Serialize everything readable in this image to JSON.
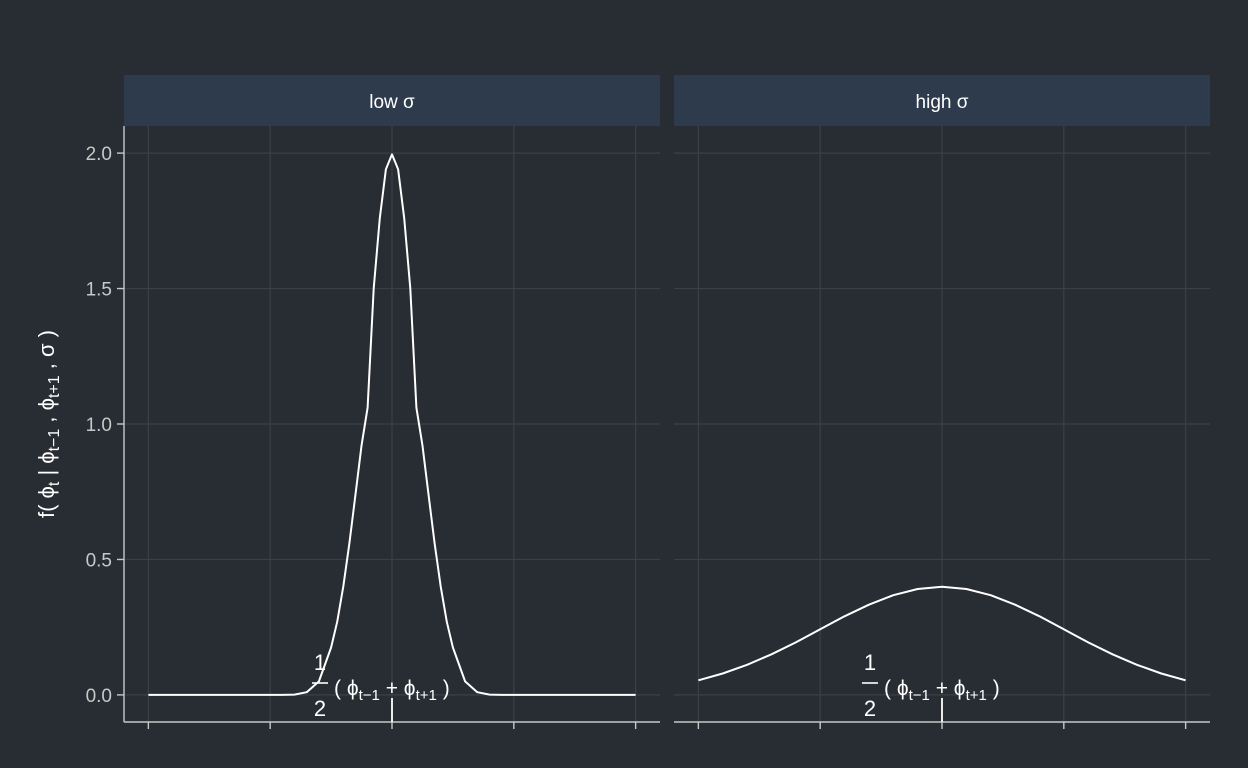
{
  "colors": {
    "background": "#282c33",
    "panel": "#282c33",
    "strip": "#2e3b4d",
    "grid": "#3b4048",
    "axis": "#c8c8c8",
    "curve": "#ffffff"
  },
  "chart_data": {
    "type": "line",
    "ylabel": "f( ϕt | ϕt−1 , ϕt+1 , σ )",
    "ylabel_parts": {
      "prefix": "f( ϕ",
      "s1": "t",
      "mid1": " | ϕ",
      "s2": "t−1",
      "mid2": " , ϕ",
      "s3": "t+1",
      "suffix": " , σ )"
    },
    "ylim": [
      -0.1,
      2.1
    ],
    "y_ticks": [
      0.0,
      0.5,
      1.0,
      1.5,
      2.0
    ],
    "y_tick_labels": [
      "0.0",
      "0.5",
      "1.0",
      "1.5",
      "2.0"
    ],
    "xlim": [
      -2.2,
      2.2
    ],
    "x_ticks": [
      -2,
      -1,
      0,
      1,
      2
    ],
    "x_tick_labels": [],
    "grid": true,
    "x_annotation": {
      "numerator": "1",
      "denominator": "2",
      "open": "( ϕ",
      "s1": "t−1",
      "plus": " + ϕ",
      "s2": "t+1",
      "close": " )",
      "x": 0
    },
    "panels": [
      {
        "strip": "low σ",
        "x_range": [
          -2,
          2
        ],
        "series": [
          {
            "x": [
              -2.0,
              -1.8,
              -1.6,
              -1.4,
              -1.2,
              -1.0,
              -0.9,
              -0.8,
              -0.7,
              -0.6,
              -0.5,
              -0.45,
              -0.4,
              -0.35,
              -0.3,
              -0.25,
              -0.2,
              -0.15,
              -0.1,
              -0.05,
              0.0,
              0.05,
              0.1,
              0.15,
              0.2,
              0.25,
              0.3,
              0.35,
              0.4,
              0.45,
              0.5,
              0.6,
              0.7,
              0.8,
              0.9,
              1.0,
              1.2,
              1.4,
              1.6,
              1.8,
              2.0
            ],
            "y": [
              0.0,
              0.0,
              0.0,
              0.0,
              0.0,
              0.0,
              0.0,
              0.001,
              0.01,
              0.05,
              0.175,
              0.27,
              0.4,
              0.56,
              0.74,
              0.92,
              1.06,
              1.5,
              1.76,
              1.94,
              1.995,
              1.94,
              1.76,
              1.5,
              1.06,
              0.92,
              0.74,
              0.56,
              0.4,
              0.27,
              0.175,
              0.05,
              0.01,
              0.001,
              0.0,
              0.0,
              0.0,
              0.0,
              0.0,
              0.0,
              0.0
            ]
          }
        ]
      },
      {
        "strip": "high σ",
        "x_range": [
          -2,
          2
        ],
        "series": [
          {
            "x": [
              -2.0,
              -1.8,
              -1.6,
              -1.4,
              -1.2,
              -1.0,
              -0.8,
              -0.6,
              -0.4,
              -0.2,
              0.0,
              0.2,
              0.4,
              0.6,
              0.8,
              1.0,
              1.2,
              1.4,
              1.6,
              1.8,
              2.0
            ],
            "y": [
              0.054,
              0.079,
              0.111,
              0.15,
              0.194,
              0.242,
              0.29,
              0.333,
              0.368,
              0.391,
              0.399,
              0.391,
              0.368,
              0.333,
              0.29,
              0.242,
              0.194,
              0.15,
              0.111,
              0.079,
              0.054
            ]
          }
        ]
      }
    ]
  }
}
